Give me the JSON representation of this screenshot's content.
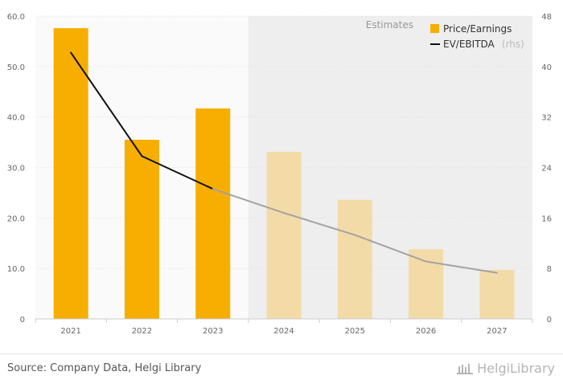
{
  "chart_data": {
    "type": "bar+line",
    "categories": [
      "2021",
      "2022",
      "2023",
      "2024",
      "2025",
      "2026",
      "2027"
    ],
    "estimates_from": "2024",
    "estimates_label": "Estimates",
    "series": [
      {
        "name": "Price/Earnings",
        "axis": "left",
        "type": "bar",
        "values": [
          57.6,
          35.5,
          41.7,
          33.1,
          23.6,
          13.8,
          9.7
        ]
      },
      {
        "name": "EV/EBITDA",
        "axis": "right",
        "type": "line",
        "suffix": "(rhs)",
        "values": [
          42.2,
          25.8,
          20.6,
          16.8,
          13.3,
          9.1,
          7.3
        ]
      }
    ],
    "y_left": {
      "ticks": [
        "60.0",
        "50.0",
        "40.0",
        "30.0",
        "20.0",
        "10.0",
        "0"
      ],
      "ylim": [
        0,
        60
      ]
    },
    "y_right": {
      "ticks": [
        "48",
        "40",
        "32",
        "24",
        "16",
        "8",
        "0"
      ],
      "ylim": [
        0,
        48
      ]
    },
    "colors": {
      "bar_actual": "#f7ae00",
      "bar_estimate": "#f3dba8",
      "line_actual": "#111111",
      "line_estimate": "#a3a3a3",
      "estimate_bg": "#eeeeee",
      "plot_bg": "#fafafa"
    }
  },
  "footer": {
    "source": "Source: Company Data, Helgi Library",
    "logo_text": "HelgiLibrary",
    "logo_icon": "library-logo-icon"
  }
}
